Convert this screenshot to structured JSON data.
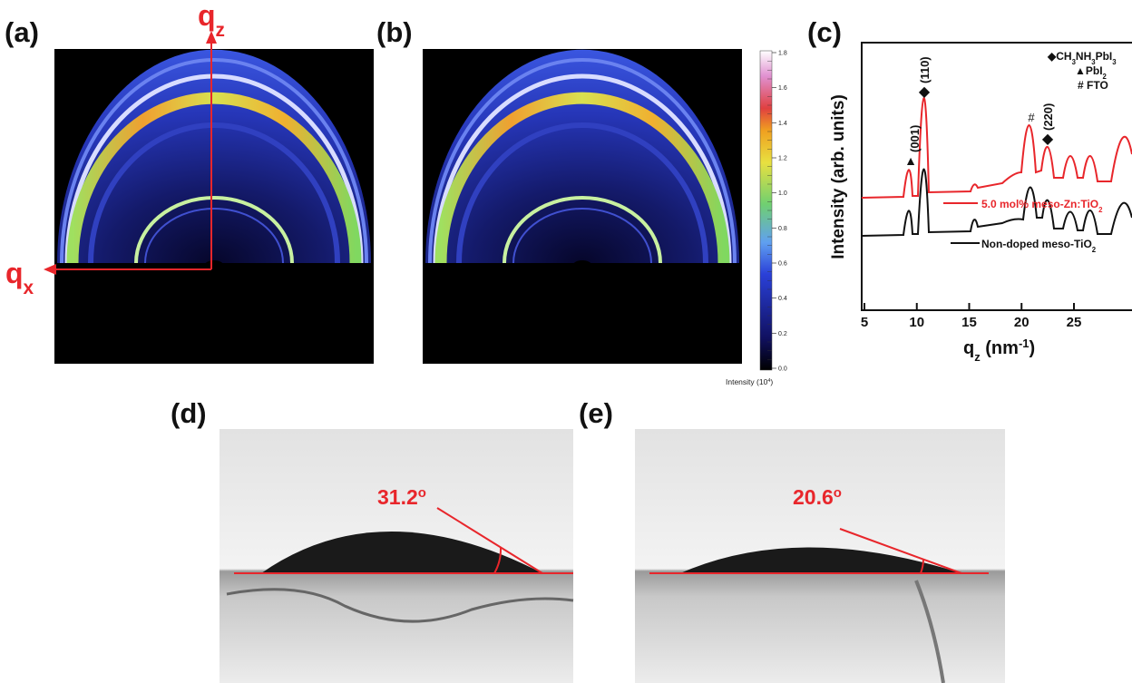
{
  "panels": {
    "a": {
      "label": "(a)",
      "qz": [
        {
          "t": "q"
        },
        {
          "t": "z",
          "s": "sub"
        }
      ],
      "qx": [
        {
          "t": "q"
        },
        {
          "t": "x",
          "s": "sub"
        }
      ]
    },
    "b": {
      "label": "(b)"
    },
    "colorbar": {
      "ticks": [
        "0.0",
        "0.2",
        "0.4",
        "0.6",
        "0.8",
        "1.0",
        "1.2",
        "1.4",
        "1.6",
        "1.8"
      ],
      "title": [
        {
          "t": "Intensity (10"
        },
        {
          "t": "4",
          "s": "sup"
        },
        {
          "t": ")"
        }
      ]
    },
    "c": {
      "label": "(c)",
      "ylabel": "Intensity (arb. units)",
      "xlabel": [
        {
          "t": "q"
        },
        {
          "t": "z",
          "s": "sub"
        },
        {
          "t": " (nm"
        },
        {
          "t": "-1",
          "s": "sup"
        },
        {
          "t": ")"
        }
      ],
      "xticks": [
        "5",
        "10",
        "15",
        "20",
        "25"
      ],
      "legend": [
        [
          {
            "t": "◆CH"
          },
          {
            "t": "3",
            "s": "sub"
          },
          {
            "t": "NH"
          },
          {
            "t": "3",
            "s": "sub"
          },
          {
            "t": "PbI"
          },
          {
            "t": "3",
            "s": "sub"
          }
        ],
        [
          {
            "t": "▲PbI"
          },
          {
            "t": "2",
            "s": "sub"
          }
        ],
        [
          {
            "t": "# FTO"
          }
        ]
      ],
      "peaks": [
        {
          "symbol": "▲",
          "label": "(001)"
        },
        {
          "symbol": "◆",
          "label": "(110)"
        },
        {
          "symbol": "#"
        },
        {
          "symbol": "◆",
          "label": "(220)"
        }
      ],
      "series": [
        {
          "name": [
            {
              "t": "5.0 mol% meso-Zn:TiO"
            },
            {
              "t": "2",
              "s": "sub"
            }
          ]
        },
        {
          "name": [
            {
              "t": "Non-doped meso-TiO"
            },
            {
              "t": "2",
              "s": "sub"
            }
          ]
        }
      ]
    },
    "d": {
      "label": "(d)",
      "angle": [
        {
          "t": "31.2"
        },
        {
          "t": "o",
          "s": "sup"
        }
      ]
    },
    "e": {
      "label": "(e)",
      "angle": [
        {
          "t": "20.6"
        },
        {
          "t": "o",
          "s": "sup"
        }
      ]
    }
  }
}
